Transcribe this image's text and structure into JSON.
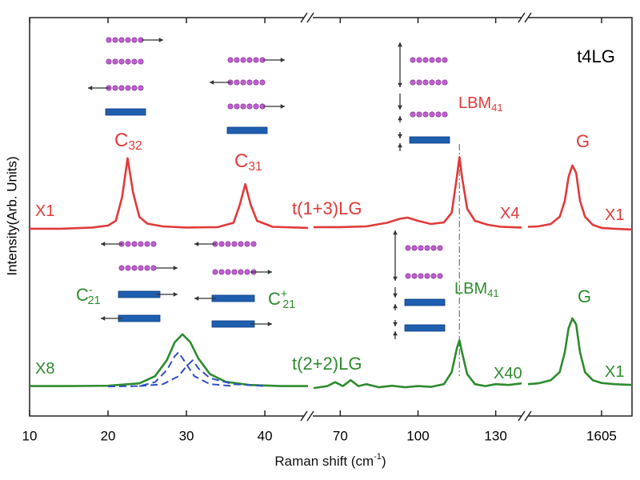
{
  "figure": {
    "title": "t4LG",
    "x_label": {
      "text": "Raman shift (cm",
      "sup": "-1",
      "tail": ")"
    },
    "y_label": "Intensity(Arb. Units)",
    "annotations": [
      {
        "text": "C",
        "sub": "32",
        "color": "#e03a3a"
      },
      {
        "text": "C",
        "sub": "31",
        "color": "#e03a3a"
      },
      {
        "text": "t(1+3)LG",
        "color": "#e03a3a"
      },
      {
        "text": "LBM",
        "sub": "41",
        "color": "#e03a3a"
      },
      {
        "text": "G",
        "color": "#e03a3a"
      },
      {
        "text": "X1",
        "color": "#e03a3a"
      },
      {
        "text": "X4",
        "color": "#e03a3a"
      },
      {
        "text": "X1",
        "color": "#e03a3a"
      },
      {
        "text": "C",
        "sup": "-",
        "sub": "21",
        "color": "#2e8b2e"
      },
      {
        "text": "C",
        "sup": "+",
        "sub": "21",
        "color": "#2e8b2e"
      },
      {
        "text": "LBM",
        "sub": "41",
        "color": "#2e8b2e"
      },
      {
        "text": "G",
        "color": "#2e8b2e"
      },
      {
        "text": "X8",
        "color": "#2e8b2e"
      },
      {
        "text": "t(2+2)LG",
        "color": "#2e8b2e"
      },
      {
        "text": "X40",
        "color": "#2e8b2e"
      },
      {
        "text": "X1",
        "color": "#2e8b2e"
      }
    ]
  },
  "chart_data": [
    {
      "type": "line",
      "xlim": [
        10,
        45.5
      ],
      "xticks": [
        10,
        20,
        30,
        40
      ],
      "ylim": [
        0,
        100
      ],
      "series": [
        {
          "color": "#e03a3a",
          "x": [
            10,
            14,
            18,
            20,
            21,
            21.8,
            22.5,
            23.2,
            24,
            25,
            27,
            30,
            34,
            36,
            36.8,
            37.5,
            38.2,
            39,
            41,
            45.5
          ],
          "values": [
            47,
            47,
            47.3,
            47.8,
            49,
            55,
            64.7,
            56,
            50,
            48.3,
            47.6,
            47.3,
            47.4,
            48.5,
            53,
            58.2,
            53,
            49,
            47.5,
            47.2
          ]
        },
        {
          "color": "#2e8b2e",
          "x": [
            10,
            15,
            20,
            24,
            26,
            27.5,
            28.5,
            29.5,
            30.5,
            31.5,
            33,
            35,
            38,
            42,
            45.5
          ],
          "values": [
            7.5,
            7.5,
            7.6,
            8.2,
            10,
            14,
            18.5,
            20.5,
            18.5,
            14.5,
            10.5,
            8.6,
            7.8,
            7.5,
            7.5
          ]
        },
        {
          "color": "#3050c0",
          "dashed": true,
          "x": [
            20,
            24,
            26,
            27.5,
            28.5,
            29,
            30,
            31,
            33,
            36
          ],
          "values": [
            7.4,
            7.5,
            8.5,
            11.5,
            15,
            16,
            13,
            10,
            8,
            7.5
          ]
        },
        {
          "color": "#3050c0",
          "dashed": true,
          "x": [
            24,
            27,
            29,
            30,
            30.8,
            31.5,
            33,
            36,
            40
          ],
          "values": [
            7.5,
            8,
            10,
            12.5,
            14,
            12,
            9.5,
            8,
            7.5
          ]
        }
      ]
    },
    {
      "type": "line",
      "xlim": [
        59.7,
        140
      ],
      "xticks": [
        70,
        100,
        130
      ],
      "ylim": [
        0,
        100
      ],
      "vline": 116,
      "series": [
        {
          "color": "#e03a3a",
          "x": [
            59.7,
            70,
            80,
            88,
            93,
            96,
            100,
            105,
            110,
            113,
            115,
            116,
            117,
            119,
            122,
            127,
            132,
            140
          ],
          "values": [
            47.4,
            47.4,
            47.6,
            48.5,
            49.5,
            49.8,
            49,
            48.2,
            48.6,
            51,
            60,
            65,
            60,
            52,
            49,
            48,
            47.5,
            47.3
          ]
        },
        {
          "color": "#2e8b2e",
          "x": [
            59.7,
            65,
            68,
            71,
            74,
            77,
            80,
            85,
            90,
            95,
            100,
            105,
            110,
            113,
            115,
            116,
            117,
            119,
            122,
            126,
            130,
            135,
            140
          ],
          "values": [
            7,
            7.5,
            8.5,
            7.5,
            9,
            7.5,
            8,
            7.2,
            7.6,
            7.2,
            7.5,
            7.3,
            8,
            11,
            17,
            19,
            16,
            10.5,
            8,
            7.5,
            8,
            7.8,
            8.2
          ]
        }
      ]
    },
    {
      "type": "line",
      "xlim": [
        1547,
        1629
      ],
      "xticks": [
        1605
      ],
      "ylim": [
        0,
        100
      ],
      "series": [
        {
          "color": "#e03a3a",
          "x": [
            1547,
            1555,
            1565,
            1572,
            1576,
            1579,
            1582,
            1585,
            1588,
            1592,
            1598,
            1605,
            1615,
            1629
          ],
          "values": [
            47.5,
            47.6,
            48.2,
            50,
            54,
            60,
            62.9,
            61,
            54,
            50,
            48,
            47.2,
            47,
            46.8
          ]
        },
        {
          "color": "#2e8b2e",
          "x": [
            1547,
            1555,
            1565,
            1572,
            1576,
            1579,
            1582,
            1585,
            1588,
            1592,
            1598,
            1605,
            1615,
            1629
          ],
          "values": [
            8,
            8.2,
            9,
            11,
            16,
            22,
            24.5,
            23,
            16,
            11,
            9,
            8.3,
            8,
            7.8
          ]
        }
      ]
    }
  ]
}
